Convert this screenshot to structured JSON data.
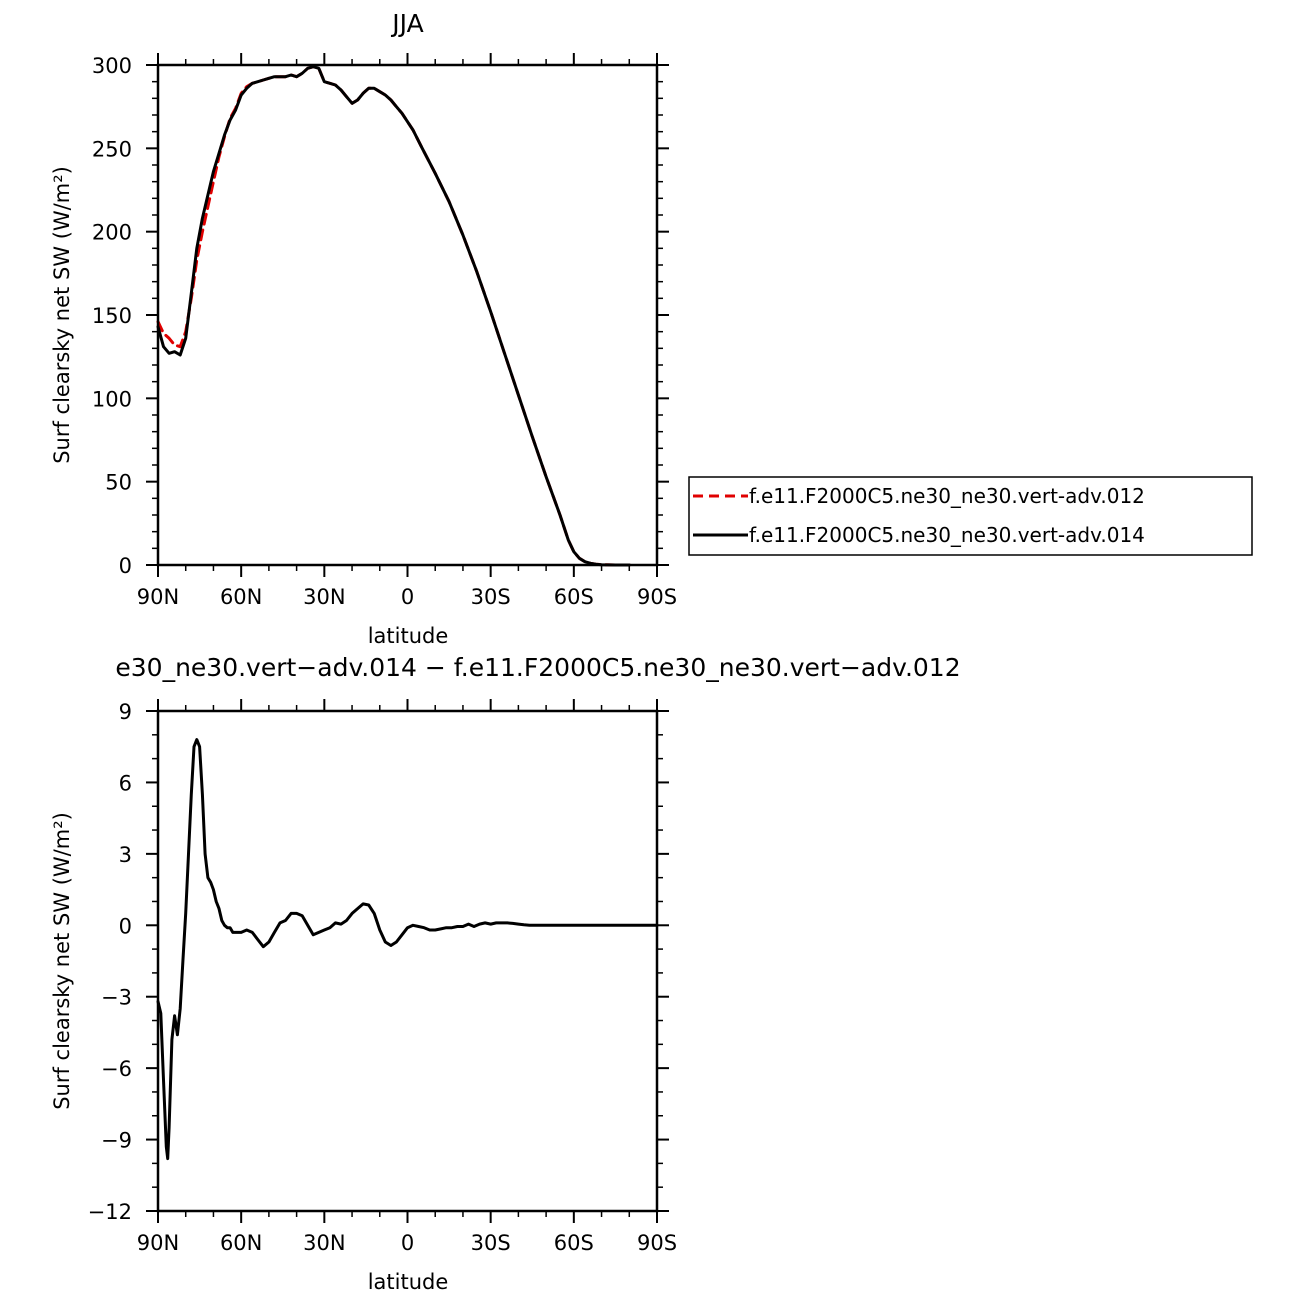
{
  "chart_data": [
    {
      "type": "line",
      "title": "JJA",
      "xlabel": "latitude",
      "ylabel": "Surf clearsky net SW (W/m²)",
      "xlim": [
        90,
        -90
      ],
      "ylim": [
        0,
        300
      ],
      "x_ticks": [
        {
          "value": 90,
          "label": "90N"
        },
        {
          "value": 60,
          "label": "60N"
        },
        {
          "value": 30,
          "label": "30N"
        },
        {
          "value": 0,
          "label": "0"
        },
        {
          "value": -30,
          "label": "30S"
        },
        {
          "value": -60,
          "label": "60S"
        },
        {
          "value": -90,
          "label": "90S"
        }
      ],
      "y_ticks": [
        0,
        50,
        100,
        150,
        200,
        250,
        300
      ],
      "grid": false,
      "legend": "right",
      "series": [
        {
          "name": "f.e11.F2000C5.ne30_ne30.vert-adv.012",
          "color": "#e00000",
          "dash": "dashed",
          "x": [
            90,
            88,
            86,
            84,
            82,
            80,
            78,
            76,
            74,
            72,
            70,
            68,
            66,
            64,
            62,
            60,
            58,
            56,
            54,
            52,
            50,
            48,
            46,
            44,
            42,
            40,
            38,
            36,
            34,
            32,
            30,
            28,
            26,
            24,
            22,
            20,
            18,
            16,
            14,
            12,
            10,
            8,
            6,
            4,
            2,
            0,
            -2,
            -5,
            -10,
            -15,
            -20,
            -25,
            -30,
            -35,
            -40,
            -45,
            -50,
            -55,
            -58,
            -60,
            -62,
            -64,
            -66,
            -68,
            -70,
            -75,
            -80
          ],
          "y": [
            146,
            139,
            136,
            132,
            131,
            140,
            160,
            183,
            200,
            215,
            230,
            245,
            257,
            268,
            274,
            283,
            287,
            289,
            290,
            291,
            292,
            293,
            293,
            293,
            294,
            293,
            295,
            298,
            299,
            298,
            290,
            289,
            288,
            285,
            281,
            277,
            279,
            283,
            286,
            286,
            284,
            282,
            279,
            275,
            271,
            266,
            261,
            251,
            235,
            218,
            198,
            176,
            152,
            127,
            102,
            77,
            53,
            30,
            15,
            8,
            4,
            2,
            1,
            0.5,
            0.2,
            0,
            0
          ]
        },
        {
          "name": "f.e11.F2000C5.ne30_ne30.vert-adv.014",
          "color": "#000000",
          "dash": "solid",
          "x": [
            90,
            88,
            86,
            84,
            82,
            80,
            78,
            76,
            74,
            72,
            70,
            68,
            66,
            64,
            62,
            60,
            58,
            56,
            54,
            52,
            50,
            48,
            46,
            44,
            42,
            40,
            38,
            36,
            34,
            32,
            30,
            28,
            26,
            24,
            22,
            20,
            18,
            16,
            14,
            12,
            10,
            8,
            6,
            4,
            2,
            0,
            -2,
            -5,
            -10,
            -15,
            -20,
            -25,
            -30,
            -35,
            -40,
            -45,
            -50,
            -55,
            -58,
            -60,
            -62,
            -64,
            -66,
            -68,
            -70,
            -75,
            -80
          ],
          "y": [
            143,
            131,
            127,
            128,
            126,
            136,
            163,
            190,
            208,
            222,
            236,
            247,
            258,
            267,
            273,
            282,
            286,
            289,
            290,
            291,
            292,
            293,
            293,
            293,
            294,
            293,
            295,
            298,
            299,
            298,
            290,
            289,
            288,
            285,
            281,
            277,
            279,
            283,
            286,
            286,
            284,
            282,
            279,
            275,
            271,
            266,
            261,
            251,
            235,
            218,
            198,
            176,
            152,
            127,
            102,
            77,
            53,
            30,
            15,
            8,
            4,
            2,
            1,
            0.5,
            0.2,
            0,
            0
          ]
        }
      ]
    },
    {
      "type": "line",
      "title": "e30_ne30.vert−adv.014 − f.e11.F2000C5.ne30_ne30.vert−adv.012",
      "xlabel": "latitude",
      "ylabel": "Surf clearsky net SW (W/m²)",
      "xlim": [
        90,
        -90
      ],
      "ylim": [
        -12,
        9
      ],
      "x_ticks": [
        {
          "value": 90,
          "label": "90N"
        },
        {
          "value": 60,
          "label": "60N"
        },
        {
          "value": 30,
          "label": "30N"
        },
        {
          "value": 0,
          "label": "0"
        },
        {
          "value": -30,
          "label": "30S"
        },
        {
          "value": -60,
          "label": "60S"
        },
        {
          "value": -90,
          "label": "90S"
        }
      ],
      "y_ticks": [
        -12,
        -9,
        -6,
        -3,
        0,
        3,
        6,
        9
      ],
      "grid": false,
      "series": [
        {
          "color": "#000000",
          "dash": "solid",
          "x": [
            90,
            89,
            88,
            87,
            86.5,
            86,
            85,
            84,
            83,
            82,
            81,
            80,
            79,
            78,
            77,
            76,
            75,
            74,
            73,
            72,
            71,
            70,
            69,
            68,
            67,
            66,
            65,
            64,
            63,
            62,
            61,
            60,
            58,
            56,
            54,
            52,
            50,
            48,
            46,
            44,
            42,
            40,
            38,
            36,
            34,
            32,
            30,
            28,
            26,
            24,
            22,
            20,
            18,
            16,
            14,
            12,
            10,
            8,
            6,
            4,
            2,
            0,
            -2,
            -4,
            -6,
            -8,
            -10,
            -12,
            -14,
            -16,
            -18,
            -20,
            -22,
            -24,
            -26,
            -28,
            -30,
            -32,
            -34,
            -36,
            -38,
            -40,
            -42,
            -44,
            -46,
            -48,
            -50,
            -52,
            -54,
            -56,
            -58,
            -60,
            -62,
            -64,
            -66,
            -70,
            -75,
            -80,
            -85,
            -90
          ],
          "y": [
            -3.2,
            -3.7,
            -6.5,
            -9.3,
            -9.8,
            -8.5,
            -4.8,
            -3.8,
            -4.6,
            -3.5,
            -1.5,
            0.5,
            3.0,
            5.5,
            7.5,
            7.8,
            7.5,
            5.5,
            3.0,
            2.0,
            1.8,
            1.5,
            1.0,
            0.7,
            0.2,
            0.0,
            -0.1,
            -0.1,
            -0.3,
            -0.3,
            -0.3,
            -0.3,
            -0.2,
            -0.3,
            -0.6,
            -0.9,
            -0.7,
            -0.3,
            0.1,
            0.2,
            0.5,
            0.5,
            0.4,
            0.0,
            -0.4,
            -0.3,
            -0.2,
            -0.1,
            0.1,
            0.05,
            0.2,
            0.5,
            0.7,
            0.9,
            0.85,
            0.5,
            -0.2,
            -0.7,
            -0.85,
            -0.7,
            -0.4,
            -0.1,
            0.0,
            -0.05,
            -0.1,
            -0.2,
            -0.2,
            -0.15,
            -0.1,
            -0.1,
            -0.05,
            -0.05,
            0.05,
            -0.05,
            0.05,
            0.1,
            0.05,
            0.1,
            0.1,
            0.1,
            0.08,
            0.05,
            0.02,
            0.0,
            0.0,
            0.0,
            0.0,
            0.0,
            0.0,
            0.0,
            0.0,
            0.0,
            0.0,
            0.0,
            0.0,
            0.0,
            0.0,
            0.0,
            0.0,
            0.0
          ]
        }
      ]
    }
  ]
}
